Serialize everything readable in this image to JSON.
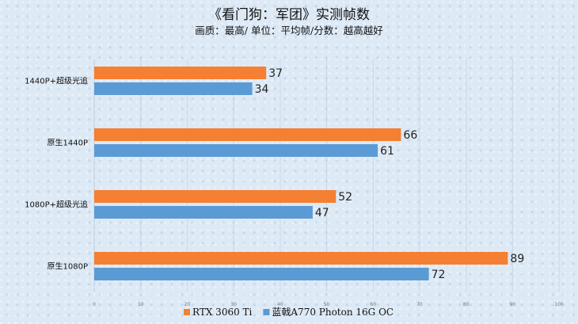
{
  "chart_data": {
    "type": "bar",
    "orientation": "horizontal",
    "title": "《看门狗：军团》实测帧数",
    "subtitle": "画质：最高/ 单位：平均帧/分数：越高越好",
    "categories": [
      "1440P+超级光追",
      "原生1440P",
      "1080P+超级光追",
      "原生1080P"
    ],
    "series": [
      {
        "name": "RTX 3060 Ti",
        "color": "#f57f32",
        "values": [
          37,
          66,
          52,
          89
        ]
      },
      {
        "name": "蓝戟A770 Photon 16G OC",
        "color": "#5b9bd5",
        "values": [
          34,
          61,
          47,
          72
        ]
      }
    ],
    "xlim": [
      0,
      100
    ],
    "xticks": [
      "0",
      "10",
      "20",
      "30",
      "40",
      "50",
      "60",
      "70",
      "80",
      "90",
      "100"
    ],
    "grid": true,
    "legend_position": "bottom"
  }
}
